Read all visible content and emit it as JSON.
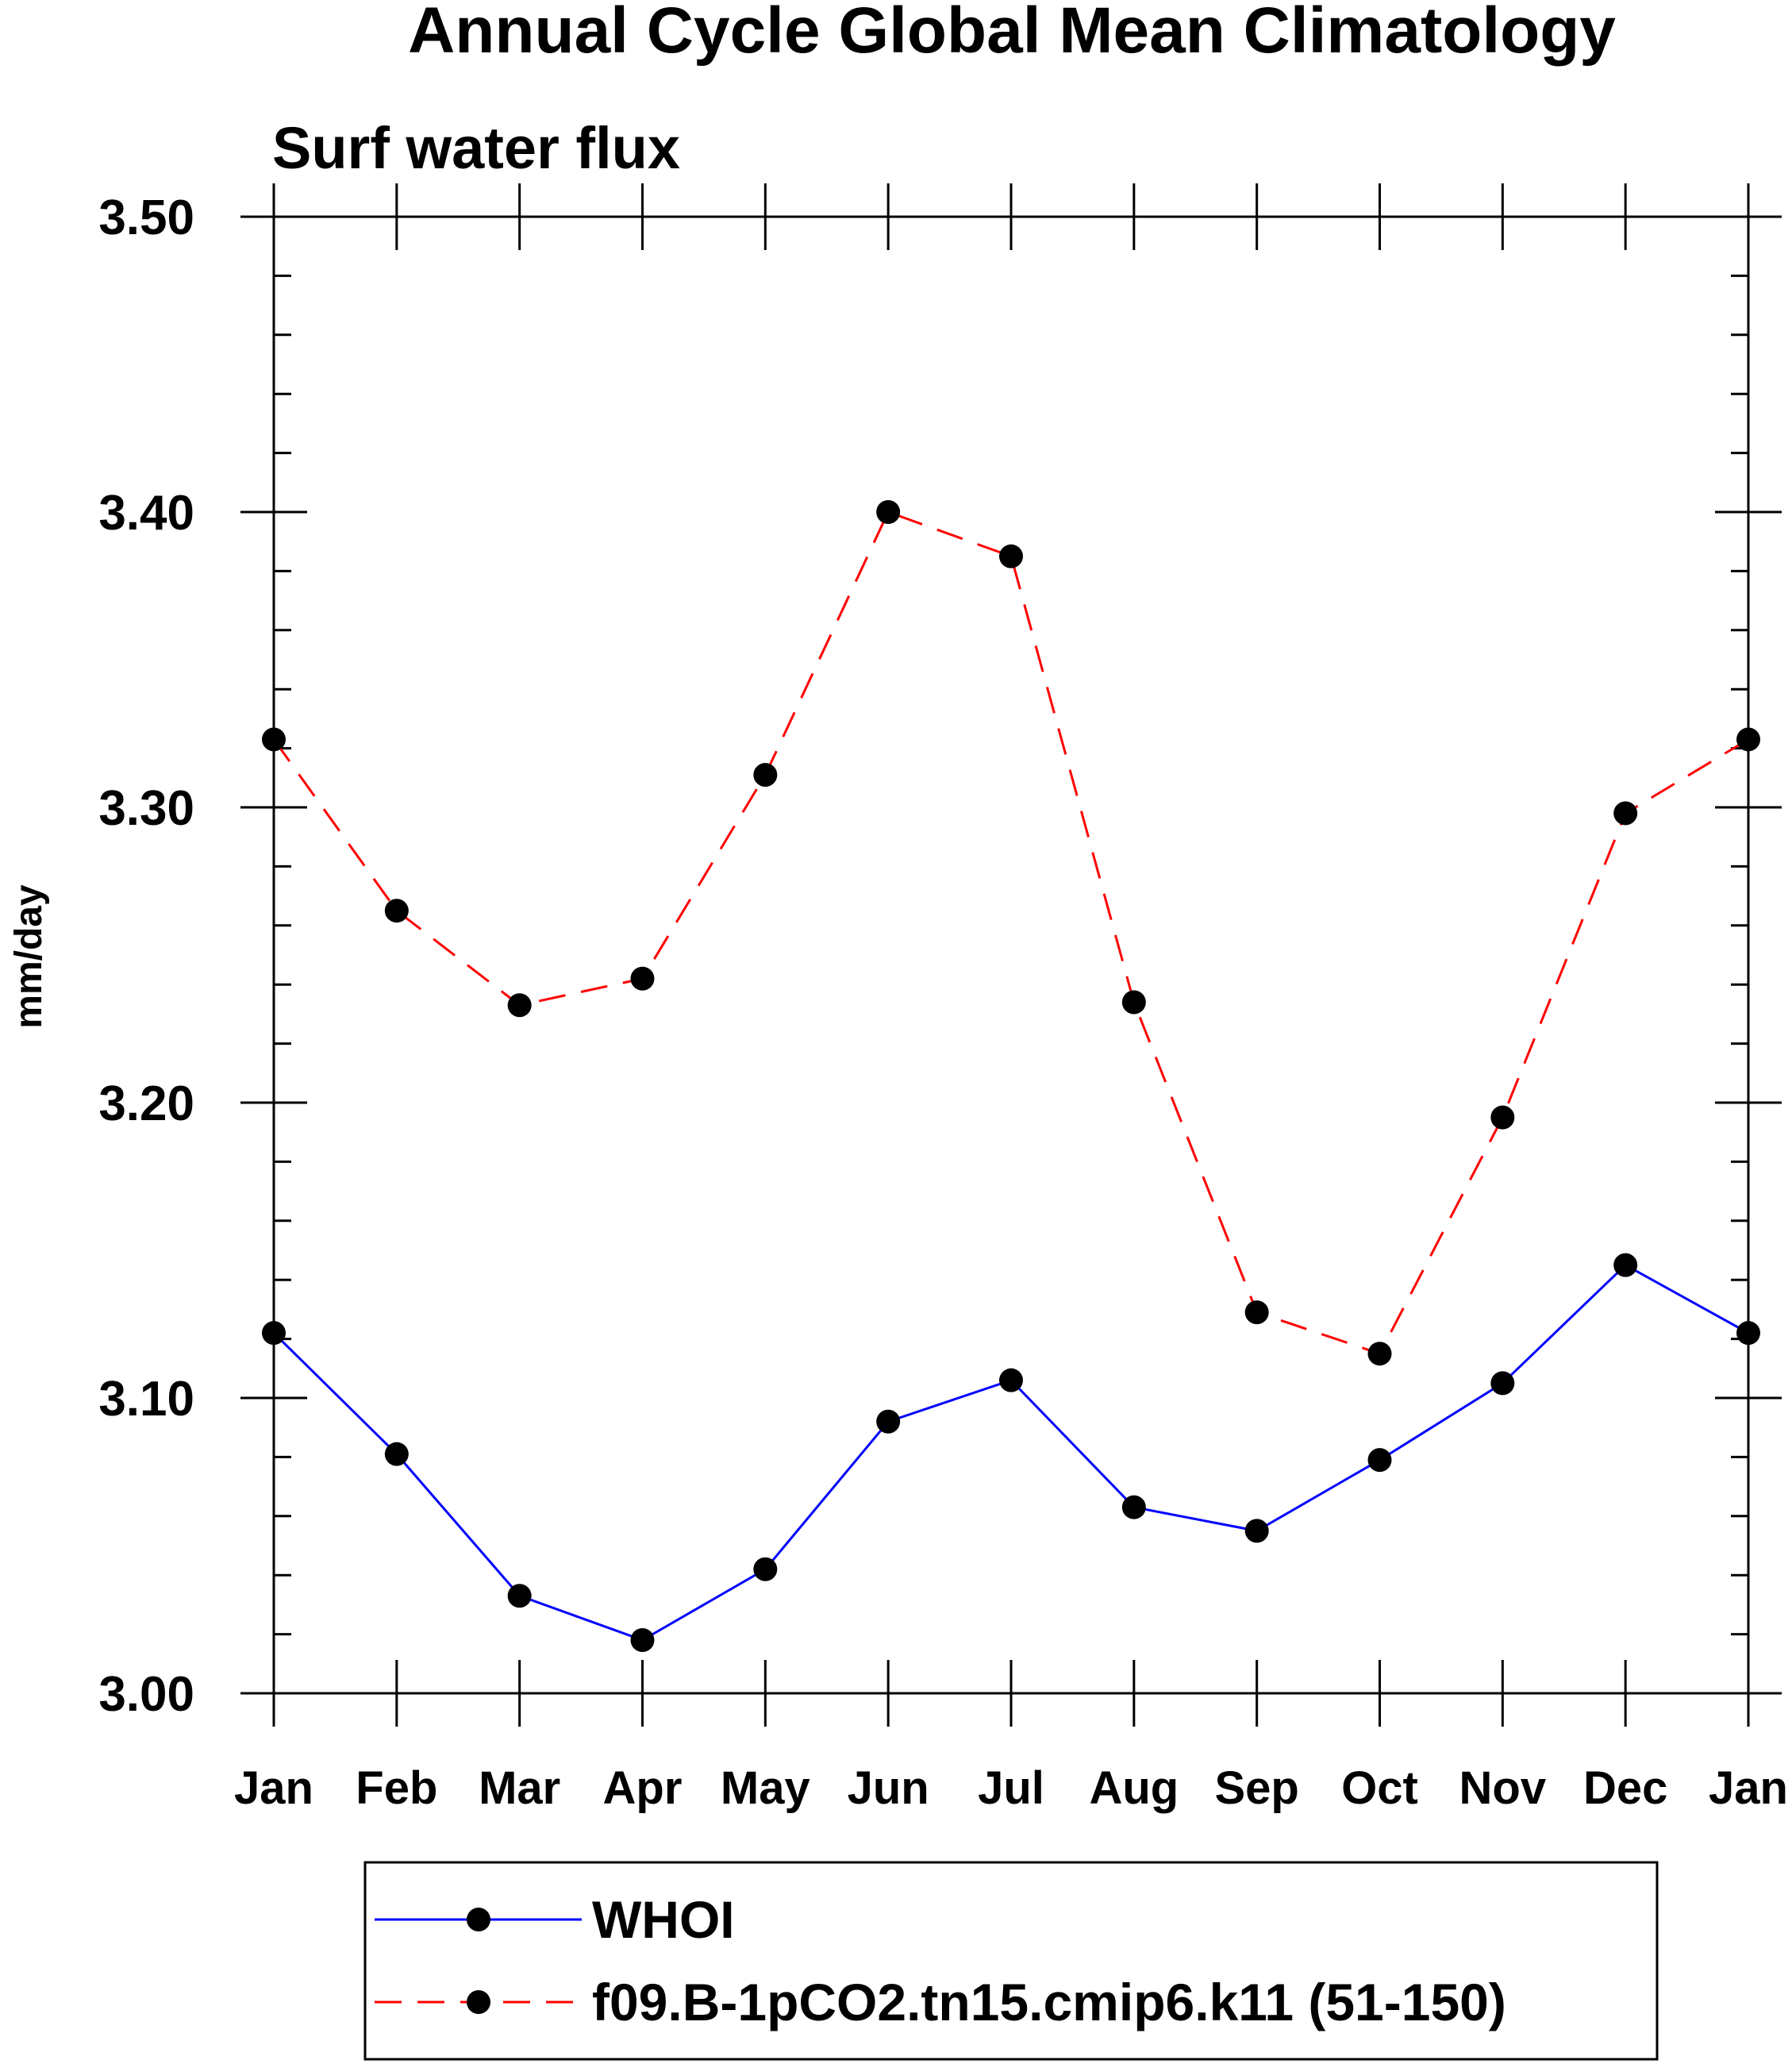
{
  "chart_data": {
    "type": "line",
    "title": "Annual Cycle Global Mean Climatology",
    "subtitle": "Surf water flux",
    "xlabel": "",
    "ylabel": "mm/day",
    "ylim": [
      3.0,
      3.5
    ],
    "yticks": [
      "3.00",
      "3.10",
      "3.20",
      "3.30",
      "3.40",
      "3.50"
    ],
    "categories": [
      "Jan",
      "Feb",
      "Mar",
      "Apr",
      "May",
      "Jun",
      "Jul",
      "Aug",
      "Sep",
      "Oct",
      "Nov",
      "Dec",
      "Jan"
    ],
    "grid": false,
    "legend_position": "bottom",
    "series": [
      {
        "name": "WHOI",
        "color": "#0000ff",
        "dash": "solid",
        "marker": "filled-circle",
        "values": [
          3.122,
          3.081,
          3.033,
          3.018,
          3.042,
          3.092,
          3.106,
          3.063,
          3.055,
          3.079,
          3.105,
          3.145,
          3.122
        ]
      },
      {
        "name": "f09.B-1pCO2.tn15.cmip6.k11 (51-150)",
        "color": "#ff0000",
        "dash": "dashed",
        "marker": "filled-circle",
        "values": [
          3.323,
          3.265,
          3.233,
          3.242,
          3.311,
          3.4,
          3.385,
          3.234,
          3.129,
          3.115,
          3.195,
          3.298,
          3.323
        ]
      }
    ]
  }
}
